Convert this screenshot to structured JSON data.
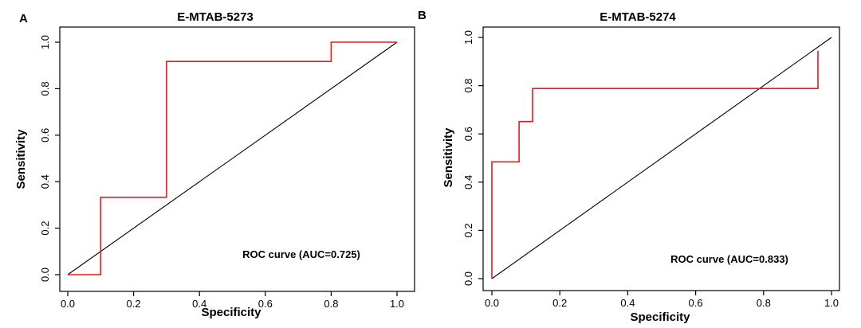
{
  "chart_data": [
    {
      "type": "line",
      "panel_letter": "A",
      "title": "E-MTAB-5273",
      "xlabel": "Specificity",
      "ylabel": "Sensitivity",
      "xlim": [
        0,
        1
      ],
      "ylim": [
        0,
        1
      ],
      "xticks": [
        "0.0",
        "0.2",
        "0.4",
        "0.6",
        "0.8",
        "1.0"
      ],
      "yticks": [
        "0.0",
        "0.2",
        "0.4",
        "0.6",
        "0.8",
        "1.0"
      ],
      "annotation": "ROC curve (AUC=0.725)",
      "diagonal": {
        "from": [
          0,
          0
        ],
        "to": [
          1,
          1
        ],
        "color": "#000000"
      },
      "series": [
        {
          "color": "#e8191f",
          "x": [
            0.0,
            0.1,
            0.1,
            0.3,
            0.3,
            0.8,
            0.8,
            1.0
          ],
          "y": [
            0.0,
            0.0,
            0.333,
            0.333,
            0.917,
            0.917,
            1.0,
            1.0
          ]
        }
      ],
      "grid": false
    },
    {
      "type": "line",
      "panel_letter": "B",
      "title": "E-MTAB-5274",
      "xlabel": "Specificity",
      "ylabel": "Sensitivity",
      "xlim": [
        0,
        1
      ],
      "ylim": [
        0,
        1
      ],
      "xticks": [
        "0.0",
        "0.2",
        "0.4",
        "0.6",
        "0.8",
        "1.0"
      ],
      "yticks": [
        "0.0",
        "0.2",
        "0.4",
        "0.6",
        "0.8",
        "1.0"
      ],
      "annotation": "ROC curve (AUC=0.833)",
      "diagonal": {
        "from": [
          0,
          0
        ],
        "to": [
          1,
          1
        ],
        "color": "#000000"
      },
      "series": [
        {
          "color": "#e8191f",
          "x": [
            0.0,
            0.0,
            0.08,
            0.08,
            0.12,
            0.12,
            0.96,
            0.96
          ],
          "y": [
            0.0,
            0.484,
            0.484,
            0.651,
            0.651,
            0.788,
            0.788,
            0.945
          ]
        }
      ],
      "grid": false
    }
  ]
}
